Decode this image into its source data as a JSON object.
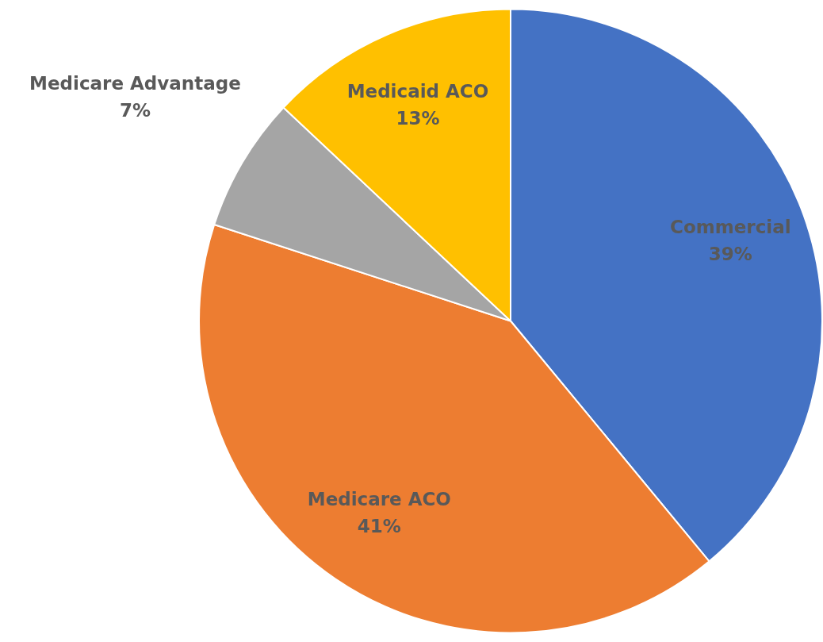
{
  "chart_data": {
    "type": "pie",
    "categories": [
      "Commercial",
      "Medicare ACO",
      "Medicare Advantage",
      "Medicaid ACO"
    ],
    "values": [
      39,
      41,
      7,
      13
    ],
    "value_labels": [
      "39%",
      "41%",
      "7%",
      "13%"
    ],
    "colors": [
      "#4472c4",
      "#ed7d31",
      "#a5a5a5",
      "#ffc000"
    ],
    "legend": false
  }
}
